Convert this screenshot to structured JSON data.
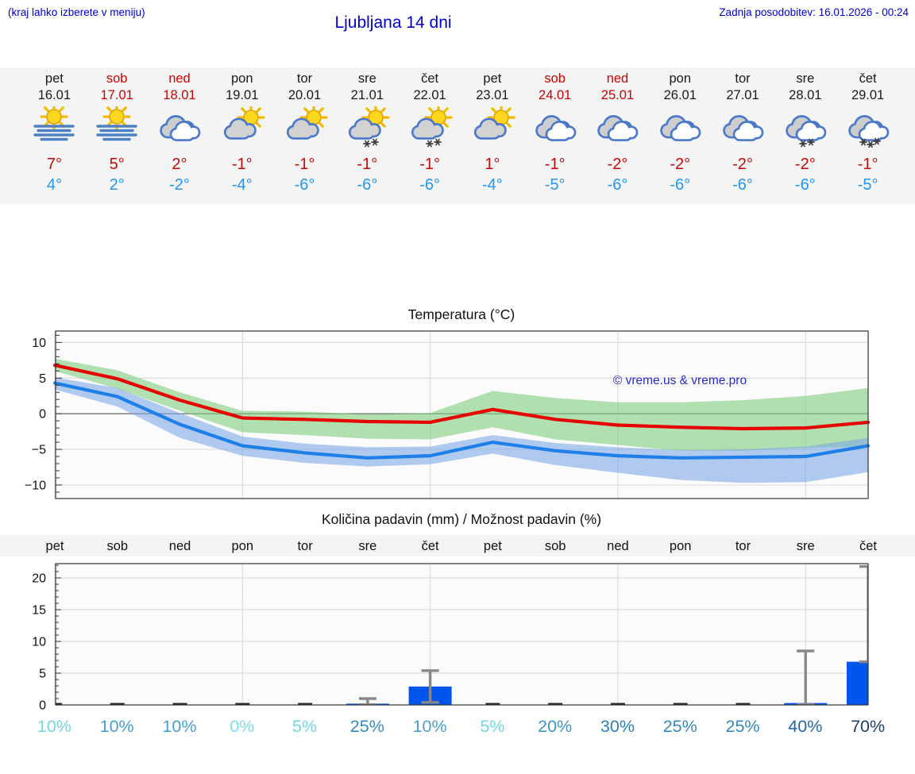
{
  "header": {
    "menu_note": "(kraj lahko izberete v meniju)",
    "title": "Ljubljana 14 dni",
    "last_update": "Zadnja posodobitev: 16.01.2026 - 00:24"
  },
  "forecast": {
    "days": [
      {
        "name": "pet",
        "date": "16.01",
        "weekend": false,
        "icon": "sun-fog",
        "high": "7°",
        "low": "4°"
      },
      {
        "name": "sob",
        "date": "17.01",
        "weekend": true,
        "icon": "sun-fog",
        "high": "5°",
        "low": "2°"
      },
      {
        "name": "ned",
        "date": "18.01",
        "weekend": true,
        "icon": "cloudy",
        "high": "2°",
        "low": "-2°"
      },
      {
        "name": "pon",
        "date": "19.01",
        "weekend": false,
        "icon": "cloud-sun",
        "high": "-1°",
        "low": "-4°"
      },
      {
        "name": "tor",
        "date": "20.01",
        "weekend": false,
        "icon": "cloud-sun",
        "high": "-1°",
        "low": "-6°"
      },
      {
        "name": "sre",
        "date": "21.01",
        "weekend": false,
        "icon": "cloud-sun-snow",
        "high": "-1°",
        "low": "-6°"
      },
      {
        "name": "čet",
        "date": "22.01",
        "weekend": false,
        "icon": "cloud-sun-snow",
        "high": "-1°",
        "low": "-6°"
      },
      {
        "name": "pet",
        "date": "23.01",
        "weekend": false,
        "icon": "cloud-sun",
        "high": "1°",
        "low": "-4°"
      },
      {
        "name": "sob",
        "date": "24.01",
        "weekend": true,
        "icon": "cloudy",
        "high": "-1°",
        "low": "-5°"
      },
      {
        "name": "ned",
        "date": "25.01",
        "weekend": true,
        "icon": "cloudy",
        "high": "-2°",
        "low": "-6°"
      },
      {
        "name": "pon",
        "date": "26.01",
        "weekend": false,
        "icon": "cloudy",
        "high": "-2°",
        "low": "-6°"
      },
      {
        "name": "tor",
        "date": "27.01",
        "weekend": false,
        "icon": "cloudy",
        "high": "-2°",
        "low": "-6°"
      },
      {
        "name": "sre",
        "date": "28.01",
        "weekend": false,
        "icon": "cloudy-snow",
        "high": "-2°",
        "low": "-6°"
      },
      {
        "name": "čet",
        "date": "29.01",
        "weekend": false,
        "icon": "cloudy-snow-heavy",
        "high": "-1°",
        "low": "-5°"
      }
    ]
  },
  "chart_data": [
    {
      "type": "line",
      "title": "Temperatura (°C)",
      "watermark": "© vreme.us & vreme.pro",
      "ylim": [
        -11.9,
        11.6
      ],
      "yticks": [
        -10,
        -5,
        0,
        5,
        10
      ],
      "grid": {
        "h_values": [
          10,
          5,
          -5,
          -10
        ],
        "zero_line": true,
        "v_day_indices": [
          0,
          3,
          6,
          9,
          12
        ]
      },
      "series": [
        {
          "name": "max-temp",
          "color": "#e60000",
          "values": [
            6.8,
            4.9,
            1.9,
            -0.6,
            -0.8,
            -1.1,
            -1.2,
            0.6,
            -0.8,
            -1.6,
            -1.9,
            -2.1,
            -2.0,
            -1.2
          ]
        },
        {
          "name": "min-temp",
          "color": "#1f7fe8",
          "values": [
            4.3,
            2.4,
            -1.5,
            -4.5,
            -5.5,
            -6.2,
            -5.9,
            -4.0,
            -5.2,
            -5.9,
            -6.2,
            -6.1,
            -6.0,
            -4.5
          ]
        }
      ],
      "bands": [
        {
          "name": "max-range",
          "color": "#7ecf7e",
          "opacity": 0.6,
          "upper": [
            7.7,
            6.1,
            3.0,
            0.4,
            0.3,
            -0.1,
            0.1,
            3.2,
            2.2,
            1.6,
            1.6,
            1.9,
            2.5,
            3.6
          ],
          "lower": [
            6.0,
            3.5,
            0.4,
            -2.6,
            -3.0,
            -3.5,
            -3.6,
            -1.9,
            -3.6,
            -4.4,
            -5.2,
            -5.2,
            -4.8,
            -4.6
          ]
        },
        {
          "name": "min-range",
          "color": "#7fa9e6",
          "opacity": 0.6,
          "upper": [
            5.1,
            3.6,
            0.1,
            -3.2,
            -4.2,
            -4.7,
            -4.6,
            -3.0,
            -4.1,
            -4.7,
            -5.1,
            -5.0,
            -4.6,
            -3.4
          ],
          "lower": [
            3.4,
            1.0,
            -3.4,
            -5.9,
            -6.9,
            -7.4,
            -7.1,
            -5.6,
            -7.2,
            -8.3,
            -9.3,
            -9.7,
            -9.6,
            -8.2
          ]
        }
      ]
    },
    {
      "type": "bar",
      "title": "Količina padavin (mm) / Možnost padavin (%)",
      "day_labels": [
        "pet",
        "sob",
        "ned",
        "pon",
        "tor",
        "sre",
        "čet",
        "pet",
        "sob",
        "ned",
        "pon",
        "tor",
        "sre",
        "čet"
      ],
      "ylim": [
        0,
        22.25
      ],
      "yticks": [
        0,
        5,
        10,
        15,
        20
      ],
      "grid": {
        "h_values": [
          5,
          10,
          15,
          20
        ],
        "v_day_indices": [
          0,
          3,
          6,
          9,
          12
        ]
      },
      "bar_color": "#0055ee",
      "whisker_color": "#898989",
      "values": [
        0,
        0,
        0,
        0,
        0,
        0.2,
        2.9,
        0,
        0,
        0,
        0,
        0,
        0.3,
        6.8
      ],
      "whiskers": [
        null,
        null,
        null,
        null,
        null,
        [
          0.05,
          1.0
        ],
        [
          0.4,
          5.4
        ],
        null,
        null,
        null,
        null,
        null,
        [
          0.05,
          8.5
        ],
        [
          6.8,
          21.8
        ]
      ],
      "probabilities": [
        {
          "label": "10%",
          "color": "#72d6e1"
        },
        {
          "label": "10%",
          "color": "#49a0ce"
        },
        {
          "label": "10%",
          "color": "#49a0ce"
        },
        {
          "label": "0%",
          "color": "#7edee8"
        },
        {
          "label": "5%",
          "color": "#72d6e1"
        },
        {
          "label": "25%",
          "color": "#338abd"
        },
        {
          "label": "10%",
          "color": "#49a0ce"
        },
        {
          "label": "5%",
          "color": "#72d6e1"
        },
        {
          "label": "20%",
          "color": "#3e95c6"
        },
        {
          "label": "30%",
          "color": "#2e7fb3"
        },
        {
          "label": "25%",
          "color": "#338abd"
        },
        {
          "label": "25%",
          "color": "#338abd"
        },
        {
          "label": "40%",
          "color": "#27669f"
        },
        {
          "label": "70%",
          "color": "#1d3f69"
        }
      ]
    }
  ]
}
